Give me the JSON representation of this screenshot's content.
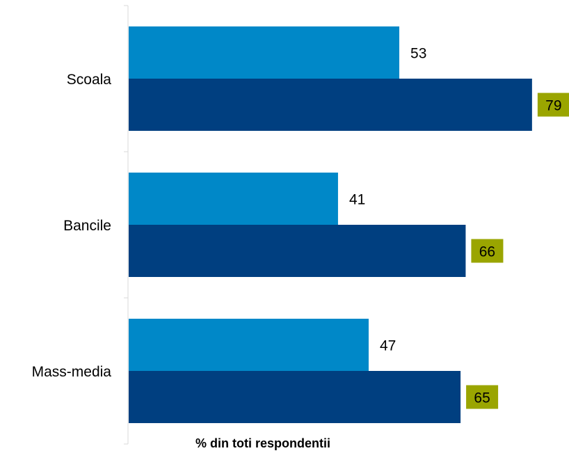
{
  "chart_data": {
    "type": "bar",
    "orientation": "horizontal",
    "categories": [
      "Scoala",
      "Bancile",
      "Mass-media"
    ],
    "series": [
      {
        "values": [
          53,
          41,
          47
        ],
        "color": "#0088c8",
        "label_highlight": false
      },
      {
        "values": [
          79,
          66,
          65
        ],
        "color": "#003f80",
        "label_highlight": true
      }
    ],
    "xlabel": "% din toti respondentii",
    "ylabel": "",
    "title": "",
    "xlim": [
      0,
      100
    ],
    "grid": false,
    "legend": "none",
    "highlight_color": "#9aa500"
  }
}
